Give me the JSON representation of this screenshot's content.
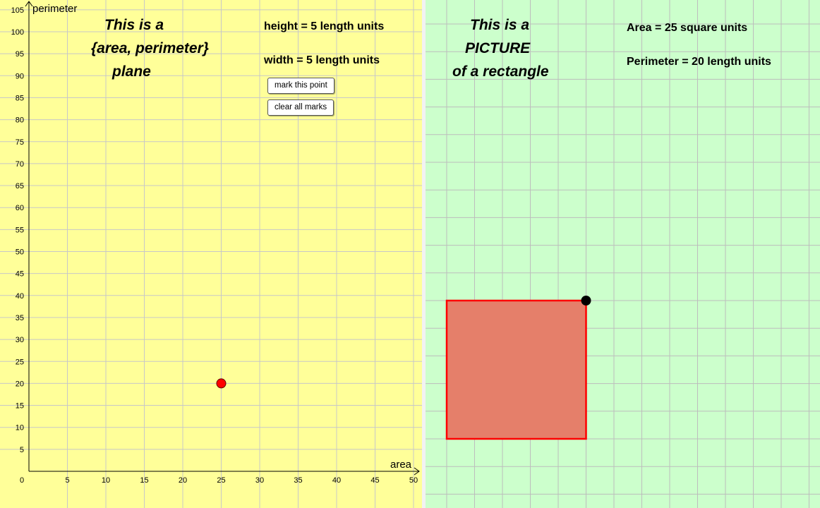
{
  "left_panel": {
    "title_lines": [
      "This is a",
      "{area, perimeter}",
      "plane"
    ],
    "height_readout": "height = 5 length units",
    "width_readout": "width = 5 length units",
    "mark_button_label": "mark this point",
    "clear_button_label": "clear all  marks",
    "background": "#ffff99"
  },
  "right_panel": {
    "title_lines": [
      "This is a",
      "PICTURE",
      "of a rectangle"
    ],
    "area_readout": "Area = 25 square units",
    "perimeter_readout": "Perimeter = 20 length units",
    "background": "#ccffcc",
    "rectangle": {
      "width": 5,
      "height": 5,
      "fill": "#e57f6a",
      "stroke": "#ff0000"
    }
  },
  "chart_data": {
    "type": "scatter",
    "xlabel": "area",
    "ylabel": "perimeter",
    "xlim": [
      0,
      51
    ],
    "ylim": [
      0,
      105
    ],
    "x_ticks": [
      "5",
      "10",
      "15",
      "20",
      "25",
      "30",
      "35",
      "40",
      "45",
      "50"
    ],
    "y_ticks": [
      "5",
      "10",
      "15",
      "20",
      "25",
      "30",
      "35",
      "40",
      "45",
      "50",
      "55",
      "60",
      "65",
      "70",
      "75",
      "80",
      "85",
      "90",
      "95",
      "100",
      "105"
    ],
    "origin_label": "0",
    "points": [
      {
        "x": 25,
        "y": 20,
        "color": "#ff0000"
      }
    ],
    "grid": true
  }
}
